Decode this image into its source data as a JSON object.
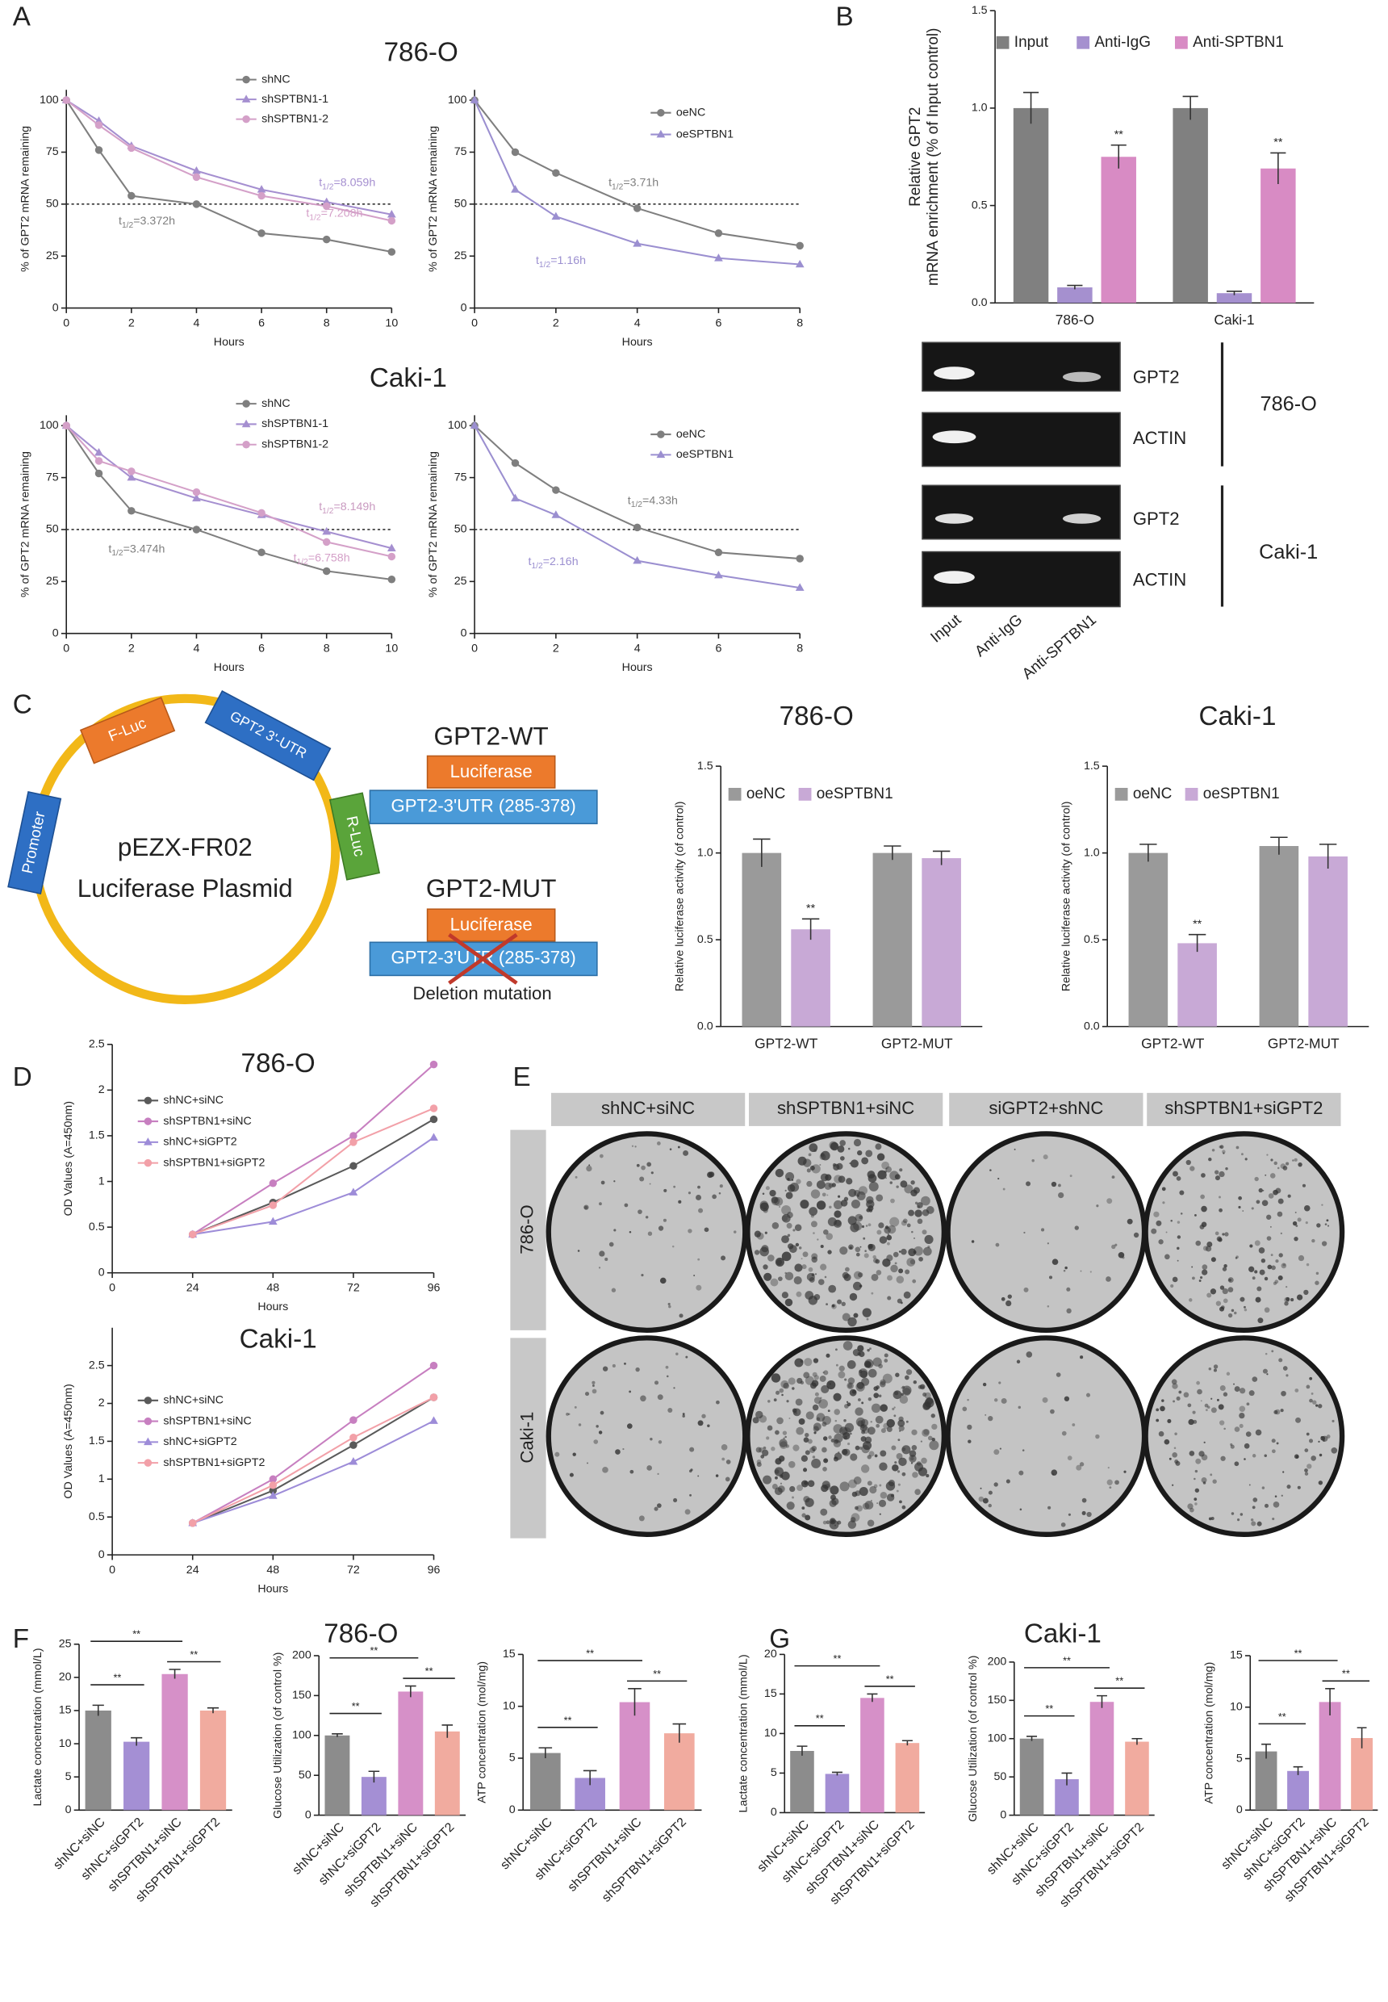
{
  "panel_labels": [
    "A",
    "B",
    "C",
    "D",
    "E",
    "F",
    "G"
  ],
  "chart_data": [
    {
      "type": "line",
      "title": "786-O",
      "x": [
        0,
        1,
        2,
        4,
        6,
        8,
        10
      ],
      "xlim": [
        0,
        10
      ],
      "xticks": [
        0,
        2,
        4,
        6,
        8,
        10
      ],
      "ylim": [
        0,
        105
      ],
      "yticks": [
        0,
        25,
        50,
        75,
        100
      ],
      "xlabel": "Hours",
      "ylabel": "% of GPT2 mRNA remaining",
      "hline": 50,
      "series": [
        {
          "name": "shNC",
          "color": "#7f7f7f",
          "marker": "circle",
          "values": [
            100,
            76,
            54,
            50,
            36,
            33,
            27
          ]
        },
        {
          "name": "shSPTBN1-1",
          "color": "#a58fd0",
          "marker": "triangle",
          "values": [
            100,
            90,
            78,
            66,
            57,
            51,
            45
          ]
        },
        {
          "name": "shSPTBN1-2",
          "color": "#d4a0c8",
          "marker": "circle",
          "values": [
            100,
            88,
            77,
            63,
            54,
            49,
            42
          ]
        }
      ],
      "annotations": [
        {
          "label": "t",
          "subscript": "1/2",
          "text": "=3.372h",
          "color": "#7f7f7f"
        },
        {
          "label": "t",
          "subscript": "1/2",
          "text": "=8.059h",
          "color": "#a58fd0"
        },
        {
          "label": "t",
          "subscript": "1/2",
          "text": "=7.208h",
          "color": "#d4a0c8"
        }
      ]
    },
    {
      "type": "line",
      "x": [
        0,
        1,
        2,
        4,
        6,
        8
      ],
      "xlim": [
        0,
        8
      ],
      "xticks": [
        0,
        2,
        4,
        6,
        8
      ],
      "ylim": [
        0,
        105
      ],
      "yticks": [
        0,
        25,
        50,
        75,
        100
      ],
      "xlabel": "Hours",
      "ylabel": "% of GPT2 mRNA remaining",
      "hline": 50,
      "series": [
        {
          "name": "oeNC",
          "color": "#7f7f7f",
          "marker": "circle",
          "values": [
            100,
            75,
            65,
            48,
            36,
            30
          ]
        },
        {
          "name": "oeSPTBN1",
          "color": "#9b8fd0",
          "marker": "triangle",
          "values": [
            100,
            57,
            44,
            31,
            24,
            21
          ]
        }
      ],
      "annotations": [
        {
          "label": "t",
          "subscript": "1/2",
          "text": "=3.71h",
          "color": "#7f7f7f"
        },
        {
          "label": "t",
          "subscript": "1/2",
          "text": "=1.16h",
          "color": "#9b8fd0"
        }
      ]
    },
    {
      "type": "line",
      "title": "Caki-1",
      "x": [
        0,
        1,
        2,
        4,
        6,
        8,
        10
      ],
      "xlim": [
        0,
        10
      ],
      "xticks": [
        0,
        2,
        4,
        6,
        8,
        10
      ],
      "ylim": [
        0,
        105
      ],
      "yticks": [
        0,
        25,
        50,
        75,
        100
      ],
      "xlabel": "Hours",
      "ylabel": "% of GPT2 mRNA remaining",
      "hline": 50,
      "series": [
        {
          "name": "shNC",
          "color": "#7f7f7f",
          "marker": "circle",
          "values": [
            100,
            77,
            59,
            50,
            39,
            30,
            26
          ]
        },
        {
          "name": "shSPTBN1-1",
          "color": "#a58fd0",
          "marker": "triangle",
          "values": [
            100,
            87,
            75,
            65,
            57,
            49,
            41
          ]
        },
        {
          "name": "shSPTBN1-2",
          "color": "#d4a0c8",
          "marker": "circle",
          "values": [
            100,
            83,
            78,
            68,
            58,
            44,
            37
          ]
        }
      ],
      "annotations": [
        {
          "label": "t",
          "subscript": "1/2",
          "text": "=3.474h",
          "color": "#7f7f7f"
        },
        {
          "label": "t",
          "subscript": "1/2",
          "text": "=8.149h",
          "color": "#c99ac0"
        },
        {
          "label": "t",
          "subscript": "1/2",
          "text": "=6.758h",
          "color": "#d4a0c8"
        }
      ]
    },
    {
      "type": "line",
      "x": [
        0,
        1,
        2,
        4,
        6,
        8
      ],
      "xlim": [
        0,
        8
      ],
      "xticks": [
        0,
        2,
        4,
        6,
        8
      ],
      "ylim": [
        0,
        105
      ],
      "yticks": [
        0,
        25,
        50,
        75,
        100
      ],
      "xlabel": "Hours",
      "ylabel": "% of GPT2 mRNA remaining",
      "hline": 50,
      "series": [
        {
          "name": "oeNC",
          "color": "#7f7f7f",
          "marker": "circle",
          "values": [
            100,
            82,
            69,
            51,
            39,
            36
          ]
        },
        {
          "name": "oeSPTBN1",
          "color": "#9b8fd0",
          "marker": "triangle",
          "values": [
            100,
            65,
            57,
            35,
            28,
            22
          ]
        }
      ],
      "annotations": [
        {
          "label": "t",
          "subscript": "1/2",
          "text": "=4.33h",
          "color": "#7f7f7f"
        },
        {
          "label": "t",
          "subscript": "1/2",
          "text": "=2.16h",
          "color": "#9b8fd0"
        }
      ]
    },
    {
      "type": "bar",
      "categories": [
        "786-O",
        "Caki-1"
      ],
      "ylabel": [
        "Relative GPT2",
        "mRNA enrichment (% of Input control)"
      ],
      "ylim": [
        0,
        1.5
      ],
      "yticks": [
        {
          "value": 0,
          "label": "0.0"
        },
        0.5,
        {
          "value": 1,
          "label": "1.0"
        },
        1.5
      ],
      "series": [
        {
          "name": "Input",
          "color": "#808080",
          "values": [
            1.0,
            1.0
          ],
          "errors": [
            0.08,
            0.06
          ]
        },
        {
          "name": "Anti-IgG",
          "color": "#a590cf",
          "values": [
            0.08,
            0.05
          ],
          "errors": [
            0.01,
            0.01
          ]
        },
        {
          "name": "Anti-SPTBN1",
          "color": "#d88bc4",
          "values": [
            0.75,
            0.69
          ],
          "errors": [
            0.06,
            0.08
          ]
        }
      ],
      "significance": [
        "**",
        "**"
      ]
    },
    {
      "type": "bar",
      "title": "786-O",
      "categories": [
        "GPT2-WT",
        "GPT2-MUT"
      ],
      "ylabel": "Relative luciferase activity (of control)",
      "ylim": [
        0,
        1.5
      ],
      "yticks": [
        {
          "value": 0,
          "label": "0.0"
        },
        0.5,
        {
          "value": 1,
          "label": "1.0"
        },
        1.5
      ],
      "series": [
        {
          "name": "oeNC",
          "color": "#9a9a9a",
          "values": [
            1.0,
            1.0
          ],
          "errors": [
            0.08,
            0.04
          ]
        },
        {
          "name": "oeSPTBN1",
          "color": "#c8a9d6",
          "values": [
            0.56,
            0.97
          ],
          "errors": [
            0.06,
            0.04
          ]
        }
      ],
      "significance": [
        "**"
      ]
    },
    {
      "type": "bar",
      "title": "Caki-1",
      "categories": [
        "GPT2-WT",
        "GPT2-MUT"
      ],
      "ylabel": "Relative luciferase activity (of control)",
      "ylim": [
        0,
        1.5
      ],
      "yticks": [
        {
          "value": 0,
          "label": "0.0"
        },
        0.5,
        {
          "value": 1,
          "label": "1.0"
        },
        1.5
      ],
      "series": [
        {
          "name": "oeNC",
          "color": "#9a9a9a",
          "values": [
            1.0,
            1.04
          ],
          "errors": [
            0.05,
            0.05
          ]
        },
        {
          "name": "oeSPTBN1",
          "color": "#c8a9d6",
          "values": [
            0.48,
            0.98
          ],
          "errors": [
            0.05,
            0.07
          ]
        }
      ],
      "significance": [
        "**"
      ]
    },
    {
      "type": "line",
      "title": "786-O",
      "x": [
        24,
        48,
        72,
        96
      ],
      "xlim": [
        0,
        96
      ],
      "xticks": [
        0,
        24,
        48,
        72,
        96
      ],
      "ylim": [
        0,
        2.5
      ],
      "yticks": [
        0,
        0.5,
        1,
        1.5,
        2,
        2.5
      ],
      "xlabel": "Hours",
      "ylabel": "OD Values (A=450nm)",
      "series": [
        {
          "name": "shNC+siNC",
          "color": "#5a5a5a",
          "marker": "circle",
          "values": [
            0.42,
            0.77,
            1.17,
            1.68
          ]
        },
        {
          "name": "shSPTBN1+siNC",
          "color": "#c77fc0",
          "marker": "circle",
          "values": [
            0.42,
            0.98,
            1.5,
            2.28
          ]
        },
        {
          "name": "shNC+siGPT2",
          "color": "#9d8cd8",
          "marker": "triangle",
          "values": [
            0.42,
            0.56,
            0.88,
            1.48
          ]
        },
        {
          "name": "shSPTBN1+siGPT2",
          "color": "#f2a0a8",
          "marker": "circle",
          "values": [
            0.42,
            0.74,
            1.43,
            1.8
          ]
        }
      ]
    },
    {
      "type": "line",
      "title": "Caki-1",
      "x": [
        24,
        48,
        72,
        96
      ],
      "xlim": [
        0,
        96
      ],
      "xticks": [
        0,
        24,
        48,
        72,
        96
      ],
      "ylim": [
        0,
        3
      ],
      "yticks": [
        0,
        0.5,
        1,
        1.5,
        2,
        2.5
      ],
      "xlabel": "Hours",
      "ylabel": "OD Values (A=450nm)",
      "series": [
        {
          "name": "shNC+siNC",
          "color": "#5a5a5a",
          "marker": "circle",
          "values": [
            0.42,
            0.85,
            1.45,
            2.08
          ]
        },
        {
          "name": "shSPTBN1+siNC",
          "color": "#c77fc0",
          "marker": "circle",
          "values": [
            0.42,
            1.0,
            1.78,
            2.5
          ]
        },
        {
          "name": "shNC+siGPT2",
          "color": "#9d8cd8",
          "marker": "triangle",
          "values": [
            0.42,
            0.78,
            1.23,
            1.77
          ]
        },
        {
          "name": "shSPTBN1+siGPT2",
          "color": "#f2a0a8",
          "marker": "circle",
          "values": [
            0.42,
            0.92,
            1.55,
            2.08
          ]
        }
      ]
    },
    {
      "type": "bar",
      "categories": [
        "shNC+siNC",
        "shNC+siGPT2",
        "shSPTBN1+siNC",
        "shSPTBN1+siGPT2"
      ],
      "values": [
        15,
        10.3,
        20.5,
        15
      ],
      "errors": [
        0.8,
        0.6,
        0.7,
        0.4
      ],
      "colors": [
        "#8c8c8c",
        "#a48fd4",
        "#d690c8",
        "#f1ab9f"
      ],
      "ylabel": "Lactate concentration  (mmol/L)",
      "ylim": [
        0,
        25
      ],
      "yticks": [
        0,
        5,
        10,
        15,
        20,
        25
      ],
      "significance": [
        "**",
        "**",
        "**"
      ]
    },
    {
      "type": "bar",
      "title": "786-O",
      "categories": [
        "shNC+siNC",
        "shNC+siGPT2",
        "shSPTBN1+siNC",
        "shSPTBN1+siGPT2"
      ],
      "values": [
        100,
        48,
        155,
        105
      ],
      "errors": [
        2,
        7,
        7,
        8
      ],
      "colors": [
        "#8c8c8c",
        "#a48fd4",
        "#d690c8",
        "#f1ab9f"
      ],
      "ylabel": "Glucose Utilization  (of control %)",
      "ylim": [
        0,
        200
      ],
      "yticks": [
        0,
        50,
        100,
        150,
        200
      ],
      "significance": [
        "**",
        "**",
        "**"
      ]
    },
    {
      "type": "bar",
      "categories": [
        "shNC+siNC",
        "shNC+siGPT2",
        "shSPTBN1+siNC",
        "shSPTBN1+siGPT2"
      ],
      "values": [
        5.5,
        3.1,
        10.4,
        7.4
      ],
      "errors": [
        0.5,
        0.7,
        1.3,
        0.9
      ],
      "colors": [
        "#8c8c8c",
        "#a48fd4",
        "#d690c8",
        "#f1ab9f"
      ],
      "ylabel": "ATP concentration  (mol/mg)",
      "ylim": [
        0,
        15
      ],
      "yticks": [
        0,
        5,
        10,
        15
      ],
      "significance": [
        "**",
        "**",
        "**"
      ]
    },
    {
      "type": "bar",
      "categories": [
        "shNC+siNC",
        "shNC+siGPT2",
        "shSPTBN1+siNC",
        "shSPTBN1+siGPT2"
      ],
      "values": [
        7.8,
        4.9,
        14.5,
        8.8
      ],
      "errors": [
        0.6,
        0.2,
        0.5,
        0.3
      ],
      "colors": [
        "#8c8c8c",
        "#a48fd4",
        "#d690c8",
        "#f1ab9f"
      ],
      "ylabel": "Lactate concentration  (mmol/L)",
      "ylim": [
        0,
        20
      ],
      "yticks": [
        0,
        5,
        10,
        15,
        20
      ],
      "significance": [
        "**",
        "**",
        "**"
      ]
    },
    {
      "type": "bar",
      "title": "Caki-1",
      "categories": [
        "shNC+siNC",
        "shNC+siGPT2",
        "shSPTBN1+siNC",
        "shSPTBN1+siGPT2"
      ],
      "values": [
        100,
        47,
        148,
        96
      ],
      "errors": [
        3,
        8,
        8,
        4
      ],
      "colors": [
        "#8c8c8c",
        "#a48fd4",
        "#d690c8",
        "#f1ab9f"
      ],
      "ylabel": "Glucose Utilization  (of control %)",
      "ylim": [
        0,
        200
      ],
      "yticks": [
        0,
        50,
        100,
        150,
        200
      ],
      "significance": [
        "**",
        "**",
        "**"
      ]
    },
    {
      "type": "bar",
      "categories": [
        "shNC+siNC",
        "shNC+siGPT2",
        "shSPTBN1+siNC",
        "shSPTBN1+siGPT2"
      ],
      "values": [
        5.7,
        3.8,
        10.5,
        7.0
      ],
      "errors": [
        0.7,
        0.4,
        1.3,
        1.0
      ],
      "colors": [
        "#8c8c8c",
        "#a48fd4",
        "#d690c8",
        "#f1ab9f"
      ],
      "ylabel": "ATP concentration  (mol/mg)",
      "ylim": [
        0,
        15
      ],
      "yticks": [
        0,
        5,
        10,
        15
      ],
      "significance": [
        "**",
        "**",
        "**"
      ]
    }
  ],
  "gel": {
    "bands": [
      "GPT2",
      "ACTIN",
      "GPT2",
      "ACTIN"
    ],
    "cell_lines": [
      "786-O",
      "Caki-1"
    ],
    "lanes": [
      "Input",
      "Anti-IgG",
      "Anti-SPTBN1"
    ]
  },
  "plasmid": {
    "elements": [
      "F-Luc",
      "GPT2 3'-UTR",
      "R-Luc",
      "Promoter"
    ],
    "name": [
      "pEZX-FR02",
      "Luciferase Plasmid"
    ],
    "constructs": [
      {
        "title": "GPT2-WT",
        "reporter": "Luciferase",
        "utr": "GPT2-3'UTR (285-378)"
      },
      {
        "title": "GPT2-MUT",
        "reporter": "Luciferase",
        "utr": "GPT2-3'UTR (285-378)",
        "note": "Deletion mutation"
      }
    ]
  },
  "colony": {
    "columns": [
      "shNC+siNC",
      "shSPTBN1+siNC",
      "siGPT2+shNC",
      "shSPTBN1+siGPT2"
    ],
    "rows": [
      "786-O",
      "Caki-1"
    ]
  }
}
